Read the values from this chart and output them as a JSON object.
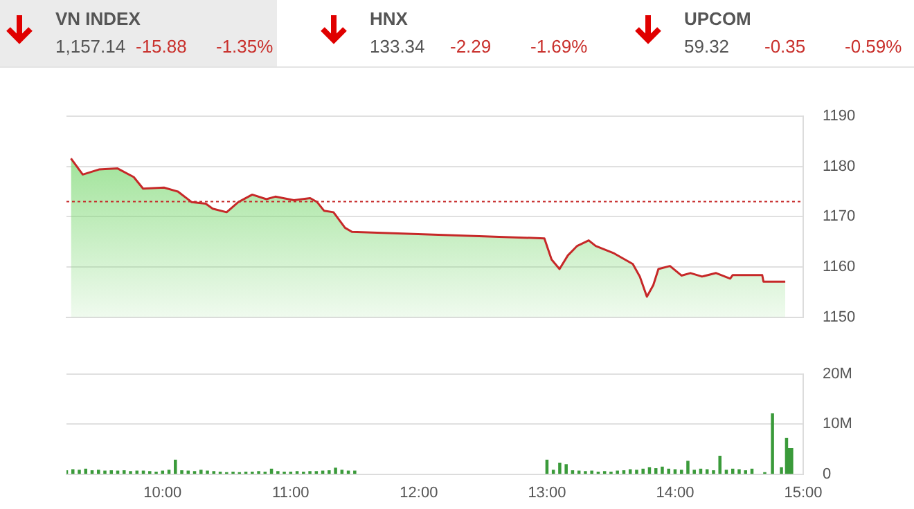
{
  "chart_data": [
    {
      "type": "other",
      "annotations": [
        "VN INDEX",
        "1,157.14",
        "-15.88",
        "-1.35%",
        "HNX",
        "133.34",
        "-2.29",
        "-1.69%",
        "UPCOM",
        "59.32",
        "-0.35",
        "-0.59%"
      ]
    },
    {
      "type": "area",
      "tick_labels": "y",
      "grid": "y",
      "legend": false,
      "xlim": [
        9.25,
        15
      ],
      "ylim": [
        1150,
        1190
      ],
      "yticks": [
        1150,
        1160,
        1170,
        1180,
        1190
      ],
      "ref_lines": [
        {
          "axis": "y",
          "value": 1173,
          "color": "#c62828",
          "line_style": "dotted"
        }
      ],
      "series": [
        {
          "color": "#c62828",
          "x": [
            9.285,
            9.377,
            9.503,
            9.649,
            9.775,
            9.848,
            10.011,
            10.12,
            10.228,
            10.337,
            10.391,
            10.5,
            10.59,
            10.7,
            10.81,
            10.88,
            11.025,
            11.152,
            11.207,
            11.26,
            11.334,
            11.424,
            11.478,
            12.51,
            12.98,
            13.036,
            13.098,
            13.163,
            13.236,
            13.326,
            13.38,
            13.525,
            13.67,
            13.725,
            13.78,
            13.83,
            13.87,
            13.96,
            14.05,
            14.12,
            14.21,
            14.32,
            14.43,
            14.45,
            14.68,
            14.69,
            14.86
          ],
          "values": [
            1181.6,
            1178.4,
            1179.4,
            1179.6,
            1177.9,
            1175.6,
            1175.8,
            1175.0,
            1172.9,
            1172.6,
            1171.6,
            1170.9,
            1172.9,
            1174.4,
            1173.5,
            1174.0,
            1173.3,
            1173.7,
            1172.9,
            1171.2,
            1170.9,
            1167.8,
            1167.0,
            1166.1,
            1165.7,
            1161.5,
            1159.6,
            1162.3,
            1164.2,
            1165.3,
            1164.2,
            1162.7,
            1160.6,
            1158.1,
            1154.1,
            1156.4,
            1159.6,
            1160.2,
            1158.3,
            1158.8,
            1158.1,
            1158.8,
            1157.7,
            1158.4,
            1158.4,
            1157.1,
            1157.1
          ]
        }
      ]
    },
    {
      "type": "bar",
      "grid": "y",
      "legend": false,
      "xlim": [
        9.25,
        15
      ],
      "xticks": [
        {
          "value": 10,
          "label": "10:00"
        },
        {
          "value": 11,
          "label": "11:00"
        },
        {
          "value": 12,
          "label": "12:00"
        },
        {
          "value": 13,
          "label": "13:00"
        },
        {
          "value": 14,
          "label": "14:00"
        },
        {
          "value": 15,
          "label": "15:00"
        }
      ],
      "ylim": [
        0,
        20
      ],
      "yticks": [
        0,
        {
          "value": 10,
          "label": "10M"
        },
        {
          "value": 20,
          "label": "20M"
        }
      ],
      "series": [
        {
          "color": "#3a9a3a",
          "x": [
            9.25,
            9.3,
            9.35,
            9.4,
            9.45,
            9.5,
            9.55,
            9.6,
            9.65,
            9.7,
            9.75,
            9.8,
            9.85,
            9.9,
            9.95,
            10.0,
            10.05,
            10.1,
            10.15,
            10.2,
            10.25,
            10.3,
            10.35,
            10.4,
            10.45,
            10.5,
            10.55,
            10.6,
            10.65,
            10.7,
            10.75,
            10.8,
            10.85,
            10.9,
            10.95,
            11.0,
            11.05,
            11.1,
            11.15,
            11.2,
            11.25,
            11.3,
            11.35,
            11.4,
            11.45,
            11.5,
            13.0,
            13.05,
            13.1,
            13.15,
            13.2,
            13.25,
            13.3,
            13.35,
            13.4,
            13.45,
            13.5,
            13.55,
            13.6,
            13.65,
            13.7,
            13.75,
            13.8,
            13.85,
            13.9,
            13.95,
            14.0,
            14.05,
            14.1,
            14.15,
            14.2,
            14.25,
            14.3,
            14.35,
            14.4,
            14.45,
            14.5,
            14.55,
            14.6,
            14.7,
            14.76,
            14.83,
            14.87,
            14.89,
            14.91
          ],
          "values": [
            0.7,
            0.9,
            0.8,
            1.0,
            0.7,
            0.8,
            0.6,
            0.7,
            0.6,
            0.7,
            0.5,
            0.6,
            0.6,
            0.5,
            0.4,
            0.6,
            0.8,
            2.8,
            0.7,
            0.6,
            0.5,
            0.8,
            0.6,
            0.5,
            0.4,
            0.3,
            0.4,
            0.3,
            0.4,
            0.4,
            0.5,
            0.4,
            1.0,
            0.5,
            0.4,
            0.4,
            0.5,
            0.4,
            0.5,
            0.5,
            0.6,
            0.7,
            1.2,
            0.8,
            0.6,
            0.6,
            2.8,
            0.8,
            2.2,
            1.9,
            0.7,
            0.6,
            0.5,
            0.6,
            0.4,
            0.5,
            0.4,
            0.6,
            0.7,
            0.9,
            0.8,
            1.0,
            1.3,
            1.1,
            1.4,
            1.0,
            0.9,
            0.8,
            2.6,
            0.8,
            1.0,
            0.9,
            0.7,
            3.6,
            0.8,
            1.0,
            0.9,
            0.7,
            1.0,
            0.3,
            12.1,
            1.3,
            7.2,
            5.1,
            5.1
          ]
        }
      ]
    }
  ]
}
